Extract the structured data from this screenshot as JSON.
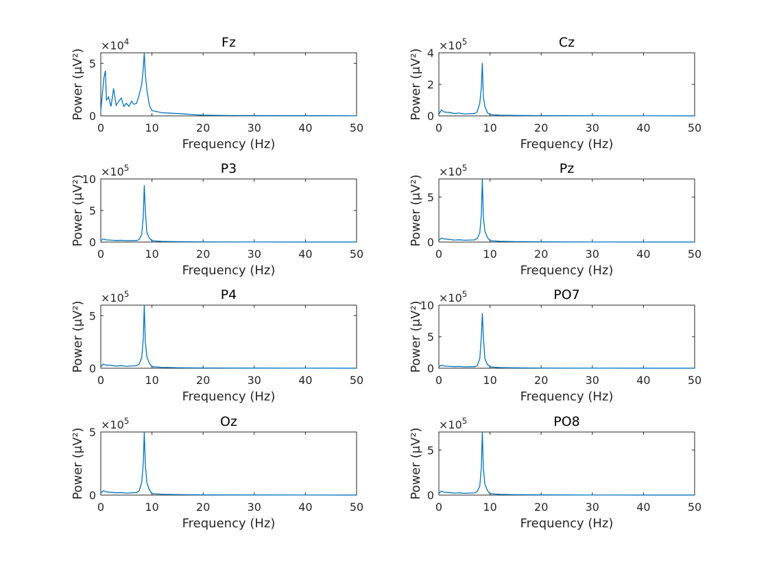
{
  "chart_data": [
    {
      "type": "line",
      "title": "Fz",
      "xlabel": "Frequency (Hz)",
      "ylabel": "Power (μV²)",
      "xlim": [
        0,
        50
      ],
      "ylim": [
        0,
        60000
      ],
      "yticks": [
        0,
        5
      ],
      "xticks": [
        0,
        10,
        20,
        30,
        40,
        50
      ],
      "exponent": "4",
      "color": "#0072BD",
      "x": [
        0,
        0.6,
        0.9,
        1.1,
        1.5,
        2,
        2.5,
        3,
        3.5,
        4,
        4.5,
        5,
        5.5,
        6,
        6.5,
        7,
        7.5,
        8,
        8.3,
        8.5,
        8.7,
        9,
        9.5,
        10,
        11,
        12,
        14,
        16,
        18,
        20,
        25,
        30,
        40,
        50
      ],
      "y": [
        5000,
        36000,
        43000,
        15000,
        18000,
        9000,
        26000,
        10000,
        14000,
        17000,
        9000,
        12000,
        9000,
        14000,
        11000,
        12000,
        20000,
        30000,
        45000,
        60000,
        40000,
        25000,
        10000,
        5000,
        4000,
        3000,
        2500,
        2000,
        1200,
        700,
        400,
        300,
        200,
        100
      ]
    },
    {
      "type": "line",
      "title": "Cz",
      "xlabel": "Frequency (Hz)",
      "ylabel": "Power (μV²)",
      "xlim": [
        0,
        50
      ],
      "ylim": [
        0,
        400000
      ],
      "yticks": [
        0,
        2,
        4
      ],
      "xticks": [
        0,
        10,
        20,
        30,
        40,
        50
      ],
      "exponent": "5",
      "color": "#0072BD",
      "x": [
        0,
        0.5,
        1,
        2,
        3,
        4,
        5,
        6,
        7,
        7.5,
        8,
        8.3,
        8.5,
        8.7,
        9,
        9.5,
        10,
        12,
        15,
        20,
        30,
        40,
        50
      ],
      "y": [
        10000,
        38000,
        25000,
        22000,
        15000,
        18000,
        12000,
        14000,
        15000,
        25000,
        80000,
        180000,
        335000,
        120000,
        60000,
        20000,
        8000,
        4000,
        3000,
        1500,
        800,
        400,
        200
      ]
    },
    {
      "type": "line",
      "title": "P3",
      "xlabel": "Frequency (Hz)",
      "ylabel": "Power (μV²)",
      "xlim": [
        0,
        50
      ],
      "ylim": [
        0,
        1000000
      ],
      "yticks": [
        0,
        5,
        10
      ],
      "xticks": [
        0,
        10,
        20,
        30,
        40,
        50
      ],
      "exponent": "5",
      "color": "#0072BD",
      "x": [
        0,
        0.5,
        1,
        2,
        3,
        4,
        5,
        6,
        7,
        7.5,
        8,
        8.3,
        8.5,
        8.7,
        9,
        9.5,
        10,
        12,
        15,
        20,
        30,
        40,
        50
      ],
      "y": [
        20000,
        50000,
        35000,
        30000,
        25000,
        28000,
        22000,
        24000,
        25000,
        40000,
        120000,
        400000,
        900000,
        500000,
        150000,
        60000,
        20000,
        10000,
        6000,
        3000,
        1500,
        800,
        400
      ]
    },
    {
      "type": "line",
      "title": "Pz",
      "xlabel": "Frequency (Hz)",
      "ylabel": "Power (μV²)",
      "xlim": [
        0,
        50
      ],
      "ylim": [
        0,
        700000
      ],
      "yticks": [
        0,
        5
      ],
      "xticks": [
        0,
        10,
        20,
        30,
        40,
        50
      ],
      "exponent": "5",
      "color": "#0072BD",
      "x": [
        0,
        0.5,
        1,
        2,
        3,
        4,
        5,
        6,
        7,
        7.5,
        8,
        8.3,
        8.5,
        8.7,
        9,
        9.5,
        10,
        12,
        15,
        20,
        30,
        40,
        50
      ],
      "y": [
        20000,
        45000,
        35000,
        30000,
        22000,
        25000,
        20000,
        22000,
        24000,
        40000,
        100000,
        300000,
        700000,
        280000,
        120000,
        50000,
        15000,
        8000,
        5000,
        2500,
        1200,
        600,
        300
      ]
    },
    {
      "type": "line",
      "title": "P4",
      "xlabel": "Frequency (Hz)",
      "ylabel": "Power (μV²)",
      "xlim": [
        0,
        50
      ],
      "ylim": [
        0,
        600000
      ],
      "yticks": [
        0,
        5
      ],
      "xticks": [
        0,
        10,
        20,
        30,
        40,
        50
      ],
      "exponent": "5",
      "color": "#0072BD",
      "x": [
        0,
        0.5,
        1,
        2,
        3,
        4,
        5,
        6,
        7,
        7.5,
        8,
        8.3,
        8.5,
        8.7,
        9,
        9.5,
        10,
        12,
        15,
        20,
        30,
        40,
        50
      ],
      "y": [
        15000,
        40000,
        30000,
        28000,
        20000,
        25000,
        18000,
        22000,
        24000,
        40000,
        100000,
        280000,
        600000,
        250000,
        110000,
        45000,
        15000,
        8000,
        5000,
        2500,
        1200,
        600,
        300
      ]
    },
    {
      "type": "line",
      "title": "PO7",
      "xlabel": "Frequency (Hz)",
      "ylabel": "Power (μV²)",
      "xlim": [
        0,
        50
      ],
      "ylim": [
        0,
        1000000
      ],
      "yticks": [
        0,
        5,
        10
      ],
      "xticks": [
        0,
        10,
        20,
        30,
        40,
        50
      ],
      "exponent": "5",
      "color": "#0072BD",
      "x": [
        0,
        0.5,
        1,
        2,
        3,
        4,
        5,
        6,
        7,
        7.5,
        8,
        8.3,
        8.5,
        8.7,
        9,
        9.5,
        10,
        12,
        15,
        20,
        30,
        40,
        50
      ],
      "y": [
        20000,
        50000,
        35000,
        30000,
        25000,
        28000,
        22000,
        24000,
        25000,
        40000,
        150000,
        500000,
        870000,
        500000,
        150000,
        60000,
        20000,
        10000,
        6000,
        3000,
        1500,
        800,
        400
      ]
    },
    {
      "type": "line",
      "title": "Oz",
      "xlabel": "Frequency (Hz)",
      "ylabel": "Power (μV²)",
      "xlim": [
        0,
        50
      ],
      "ylim": [
        0,
        500000
      ],
      "yticks": [
        0,
        5
      ],
      "xticks": [
        0,
        10,
        20,
        30,
        40,
        50
      ],
      "exponent": "5",
      "color": "#0072BD",
      "x": [
        0,
        0.5,
        1,
        2,
        3,
        4,
        5,
        6,
        7,
        7.5,
        8,
        8.3,
        8.5,
        8.7,
        9,
        9.5,
        10,
        12,
        15,
        20,
        30,
        40,
        50
      ],
      "y": [
        15000,
        35000,
        25000,
        22000,
        18000,
        20000,
        15000,
        18000,
        20000,
        35000,
        100000,
        250000,
        500000,
        250000,
        100000,
        40000,
        12000,
        6000,
        4000,
        2000,
        1000,
        500,
        250
      ]
    },
    {
      "type": "line",
      "title": "PO8",
      "xlabel": "Frequency (Hz)",
      "ylabel": "Power (μV²)",
      "xlim": [
        0,
        50
      ],
      "ylim": [
        0,
        700000
      ],
      "yticks": [
        0,
        5
      ],
      "xticks": [
        0,
        10,
        20,
        30,
        40,
        50
      ],
      "exponent": "5",
      "color": "#0072BD",
      "x": [
        0,
        0.5,
        1,
        2,
        3,
        4,
        5,
        6,
        7,
        7.5,
        8,
        8.3,
        8.5,
        8.7,
        9,
        9.5,
        10,
        12,
        15,
        20,
        30,
        40,
        50
      ],
      "y": [
        20000,
        45000,
        32000,
        28000,
        22000,
        25000,
        20000,
        22000,
        24000,
        40000,
        100000,
        300000,
        700000,
        300000,
        120000,
        50000,
        15000,
        8000,
        5000,
        2500,
        1200,
        600,
        300
      ]
    }
  ]
}
